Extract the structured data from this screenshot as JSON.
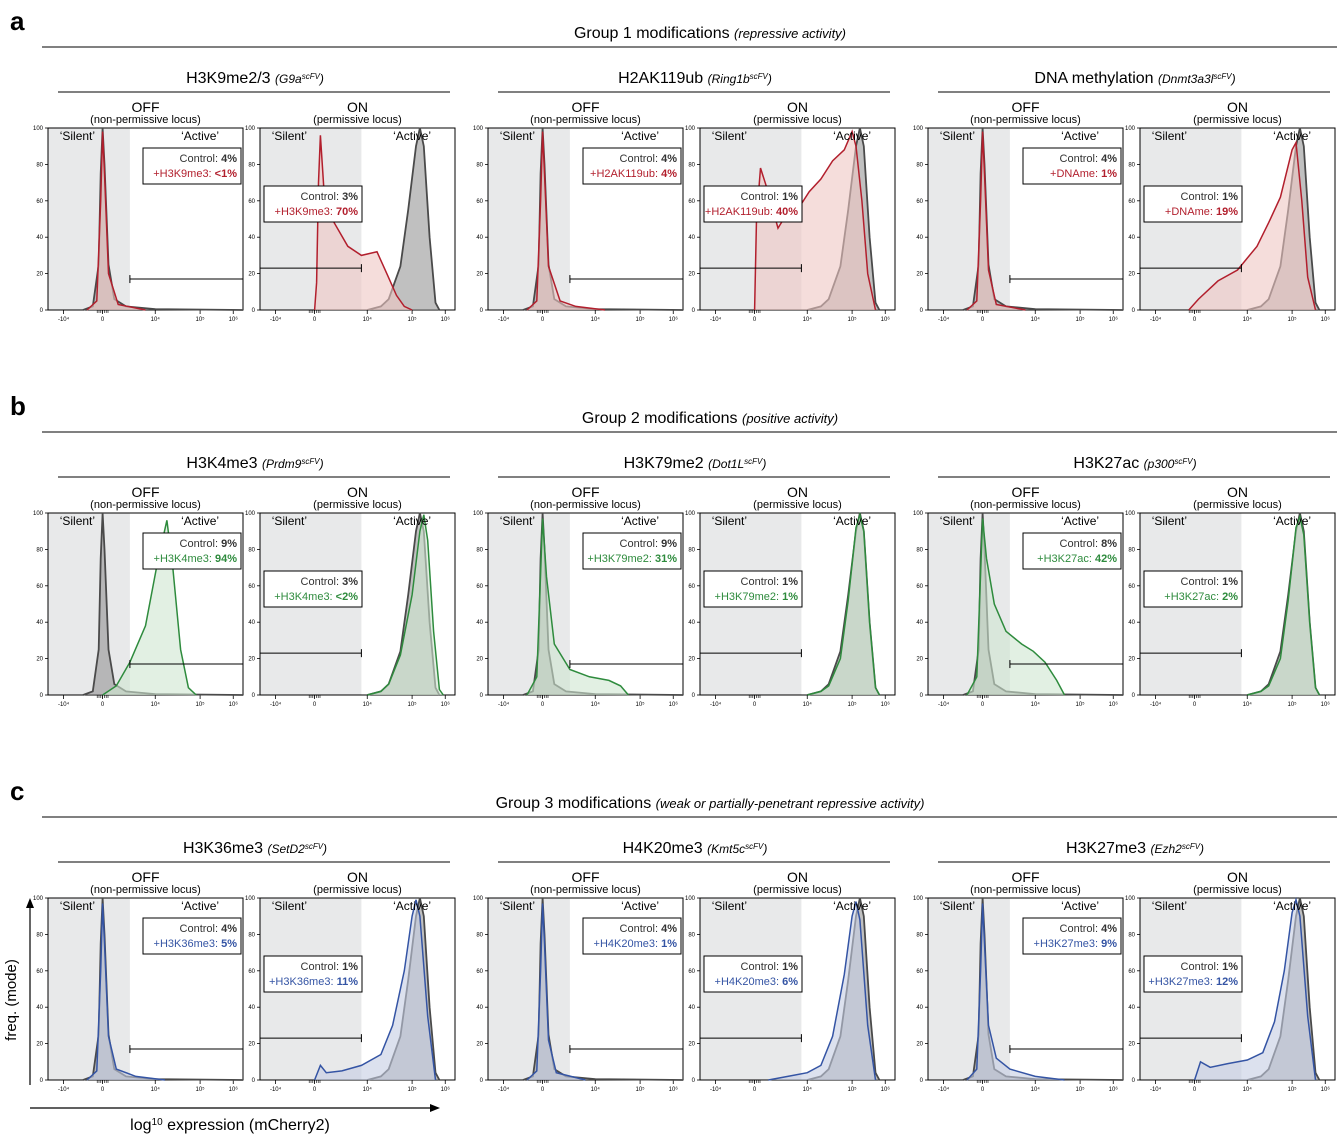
{
  "figure": {
    "y_axis_label": "freq. (mode)",
    "x_axis_label_prefix": "log",
    "x_axis_label_sub": "10",
    "x_axis_label_suffix": " expression (mCherry2)"
  },
  "common": {
    "off_title": "OFF",
    "off_subtitle": "(non-permissive locus)",
    "on_title": "ON",
    "on_subtitle": "(permissive locus)",
    "silent_label": "‘Silent’",
    "active_label": "‘Active’",
    "control_label": "Control:",
    "y_ticks": [
      "0",
      "20",
      "40",
      "60",
      "80",
      "100"
    ],
    "x_ticks": [
      "-10⁴",
      "0",
      "10⁴",
      "10⁵",
      "10⁶"
    ],
    "colors": {
      "control_line": "#4a4a4a",
      "control_fill": "#8c8c8c",
      "silent_shading": "#e8e9ea",
      "group1": "#b21f2d",
      "group1_fill": "#efc6c3",
      "group2": "#2e8b3d",
      "group2_fill": "#cfe6d0",
      "group3": "#3454a4",
      "group3_fill": "#c5cde3"
    }
  },
  "panels": [
    {
      "letter": "a",
      "title": "Group 1 modifications",
      "subtitle": "(repressive activity)",
      "color_key": "group1",
      "mods": [
        {
          "name": "H3K9me2/3",
          "enzyme": "G9a",
          "enzyme_sup": "scFV",
          "off": {
            "control": "4%",
            "mod_label": "+H3K9me3:",
            "mod": "<1%"
          },
          "on": {
            "control": "3%",
            "mod_label": "+H3K9me3:",
            "mod": "70%"
          }
        },
        {
          "name": "H2AK119ub",
          "enzyme": "Ring1b",
          "enzyme_sup": "scFV",
          "off": {
            "control": "4%",
            "mod_label": "+H2AK119ub:",
            "mod": "4%"
          },
          "on": {
            "control": "1%",
            "mod_label": "+H2AK119ub:",
            "mod": "40%"
          }
        },
        {
          "name": "DNA methylation",
          "enzyme": "Dnmt3a3l",
          "enzyme_sup": "scFV",
          "off": {
            "control": "4%",
            "mod_label": "+DNAme:",
            "mod": "1%"
          },
          "on": {
            "control": "1%",
            "mod_label": "+DNAme:",
            "mod": "19%"
          }
        }
      ]
    },
    {
      "letter": "b",
      "title": "Group 2 modifications",
      "subtitle": "(positive activity)",
      "color_key": "group2",
      "mods": [
        {
          "name": "H3K4me3",
          "enzyme": "Prdm9",
          "enzyme_sup": "scFV",
          "off": {
            "control": "9%",
            "mod_label": "+H3K4me3:",
            "mod": "94%"
          },
          "on": {
            "control": "3%",
            "mod_label": "+H3K4me3:",
            "mod": "<2%"
          }
        },
        {
          "name": "H3K79me2",
          "enzyme": "Dot1L",
          "enzyme_sup": "scFV",
          "off": {
            "control": "9%",
            "mod_label": "+H3K79me2:",
            "mod": "31%"
          },
          "on": {
            "control": "1%",
            "mod_label": "+H3K79me2:",
            "mod": "1%"
          }
        },
        {
          "name": "H3K27ac",
          "enzyme": "p300",
          "enzyme_sup": "scFV",
          "off": {
            "control": "8%",
            "mod_label": "+H3K27ac:",
            "mod": "42%"
          },
          "on": {
            "control": "1%",
            "mod_label": "+H3K27ac:",
            "mod": "2%"
          }
        }
      ]
    },
    {
      "letter": "c",
      "title": "Group 3 modifications",
      "subtitle": "(weak or partially-penetrant repressive activity)",
      "color_key": "group3",
      "mods": [
        {
          "name": "H3K36me3",
          "enzyme": "SetD2",
          "enzyme_sup": "scFV",
          "off": {
            "control": "4%",
            "mod_label": "+H3K36me3:",
            "mod": "5%"
          },
          "on": {
            "control": "1%",
            "mod_label": "+H3K36me3:",
            "mod": "11%"
          }
        },
        {
          "name": "H4K20me3",
          "enzyme": "Kmt5c",
          "enzyme_sup": "scFV",
          "off": {
            "control": "4%",
            "mod_label": "+H4K20me3:",
            "mod": "1%"
          },
          "on": {
            "control": "1%",
            "mod_label": "+H4K20me3:",
            "mod": "6%"
          }
        },
        {
          "name": "H3K27me3",
          "enzyme": "Ezh2",
          "enzyme_sup": "scFV",
          "off": {
            "control": "4%",
            "mod_label": "+H3K27me3:",
            "mod": "9%"
          },
          "on": {
            "control": "1%",
            "mod_label": "+H3K27me3:",
            "mod": "12%"
          }
        }
      ]
    }
  ],
  "chart_data": {
    "type": "area",
    "description_axes": {
      "x": "log10 expression (mCherry2)",
      "y": "freq. (mode)"
    },
    "ylim": [
      0,
      100
    ],
    "x_ticks": [
      "-10⁴",
      "0",
      "10⁴",
      "10⁵",
      "10⁶"
    ],
    "grid": false,
    "x_pos_units": "fraction of axis span between -10^4 and 10^6 ticks (0 = left tick, 1 = right tick)",
    "histograms": {
      "ctrl_off": [
        [
          0.18,
          0
        ],
        [
          0.23,
          2
        ],
        [
          0.26,
          25
        ],
        [
          0.27,
          75
        ],
        [
          0.28,
          100
        ],
        [
          0.29,
          80
        ],
        [
          0.31,
          25
        ],
        [
          0.34,
          6
        ],
        [
          0.4,
          2
        ],
        [
          0.55,
          0.5
        ],
        [
          1.0,
          0
        ]
      ],
      "ctrl_on": [
        [
          0.55,
          0
        ],
        [
          0.62,
          2
        ],
        [
          0.66,
          6
        ],
        [
          0.72,
          24
        ],
        [
          0.76,
          55
        ],
        [
          0.8,
          90
        ],
        [
          0.82,
          100
        ],
        [
          0.84,
          90
        ],
        [
          0.87,
          40
        ],
        [
          0.9,
          4
        ],
        [
          0.92,
          0
        ]
      ],
      "a_H3K9_off": [
        [
          0.2,
          0
        ],
        [
          0.25,
          5
        ],
        [
          0.27,
          60
        ],
        [
          0.28,
          98
        ],
        [
          0.29,
          75
        ],
        [
          0.31,
          20
        ],
        [
          0.36,
          3
        ],
        [
          0.5,
          0
        ]
      ],
      "a_H3K9_on": [
        [
          0.28,
          0
        ],
        [
          0.29,
          15
        ],
        [
          0.3,
          70
        ],
        [
          0.31,
          96
        ],
        [
          0.33,
          62
        ],
        [
          0.38,
          48
        ],
        [
          0.45,
          35
        ],
        [
          0.52,
          30
        ],
        [
          0.6,
          32
        ],
        [
          0.65,
          20
        ],
        [
          0.7,
          8
        ],
        [
          0.74,
          2
        ],
        [
          0.78,
          0
        ]
      ],
      "a_H2AK_off": [
        [
          0.2,
          0
        ],
        [
          0.25,
          5
        ],
        [
          0.27,
          60
        ],
        [
          0.28,
          98
        ],
        [
          0.29,
          75
        ],
        [
          0.31,
          24
        ],
        [
          0.37,
          5
        ],
        [
          0.45,
          2
        ],
        [
          0.6,
          0
        ]
      ],
      "a_H2AK_on": [
        [
          0.28,
          0
        ],
        [
          0.29,
          50
        ],
        [
          0.31,
          78
        ],
        [
          0.34,
          68
        ],
        [
          0.4,
          45
        ],
        [
          0.44,
          52
        ],
        [
          0.5,
          55
        ],
        [
          0.56,
          65
        ],
        [
          0.62,
          72
        ],
        [
          0.68,
          82
        ],
        [
          0.74,
          88
        ],
        [
          0.78,
          98
        ],
        [
          0.8,
          90
        ],
        [
          0.83,
          60
        ],
        [
          0.86,
          20
        ],
        [
          0.9,
          0
        ]
      ],
      "a_DNA_off": [
        [
          0.2,
          0
        ],
        [
          0.25,
          5
        ],
        [
          0.27,
          60
        ],
        [
          0.28,
          98
        ],
        [
          0.29,
          75
        ],
        [
          0.31,
          22
        ],
        [
          0.35,
          3
        ],
        [
          0.5,
          0
        ]
      ],
      "a_DNA_on": [
        [
          0.25,
          0
        ],
        [
          0.3,
          6
        ],
        [
          0.4,
          16
        ],
        [
          0.5,
          22
        ],
        [
          0.6,
          35
        ],
        [
          0.66,
          48
        ],
        [
          0.72,
          62
        ],
        [
          0.78,
          88
        ],
        [
          0.8,
          92
        ],
        [
          0.83,
          60
        ],
        [
          0.86,
          18
        ],
        [
          0.9,
          0
        ]
      ],
      "b_H3K4_off": [
        [
          0.28,
          0
        ],
        [
          0.35,
          5
        ],
        [
          0.42,
          18
        ],
        [
          0.5,
          38
        ],
        [
          0.56,
          72
        ],
        [
          0.61,
          96
        ],
        [
          0.64,
          70
        ],
        [
          0.68,
          25
        ],
        [
          0.72,
          4
        ],
        [
          0.76,
          0
        ]
      ],
      "b_H3K4_on": [
        [
          0.55,
          0
        ],
        [
          0.62,
          2
        ],
        [
          0.66,
          6
        ],
        [
          0.72,
          22
        ],
        [
          0.78,
          55
        ],
        [
          0.82,
          90
        ],
        [
          0.84,
          99
        ],
        [
          0.86,
          85
        ],
        [
          0.89,
          35
        ],
        [
          0.92,
          3
        ],
        [
          0.94,
          0
        ]
      ],
      "b_H3K79_off": [
        [
          0.2,
          0
        ],
        [
          0.25,
          10
        ],
        [
          0.28,
          97
        ],
        [
          0.3,
          65
        ],
        [
          0.34,
          28
        ],
        [
          0.42,
          14
        ],
        [
          0.52,
          10
        ],
        [
          0.62,
          8
        ],
        [
          0.68,
          5
        ],
        [
          0.72,
          0
        ]
      ],
      "b_H3K79_on": [
        [
          0.55,
          0
        ],
        [
          0.62,
          2
        ],
        [
          0.66,
          5
        ],
        [
          0.72,
          20
        ],
        [
          0.76,
          52
        ],
        [
          0.8,
          92
        ],
        [
          0.82,
          99
        ],
        [
          0.84,
          90
        ],
        [
          0.87,
          40
        ],
        [
          0.9,
          4
        ],
        [
          0.92,
          0
        ]
      ],
      "b_H3K27ac_off": [
        [
          0.2,
          0
        ],
        [
          0.25,
          10
        ],
        [
          0.28,
          97
        ],
        [
          0.3,
          75
        ],
        [
          0.34,
          50
        ],
        [
          0.4,
          35
        ],
        [
          0.48,
          28
        ],
        [
          0.54,
          24
        ],
        [
          0.6,
          18
        ],
        [
          0.66,
          8
        ],
        [
          0.7,
          0
        ]
      ],
      "b_H3K27ac_on": [
        [
          0.55,
          0
        ],
        [
          0.62,
          2
        ],
        [
          0.66,
          5
        ],
        [
          0.72,
          20
        ],
        [
          0.76,
          52
        ],
        [
          0.8,
          92
        ],
        [
          0.82,
          98
        ],
        [
          0.84,
          88
        ],
        [
          0.87,
          40
        ],
        [
          0.9,
          4
        ],
        [
          0.92,
          0
        ]
      ],
      "c_H3K36_off": [
        [
          0.2,
          0
        ],
        [
          0.25,
          5
        ],
        [
          0.27,
          60
        ],
        [
          0.28,
          97
        ],
        [
          0.29,
          75
        ],
        [
          0.31,
          24
        ],
        [
          0.35,
          6
        ],
        [
          0.45,
          2
        ],
        [
          0.6,
          0
        ]
      ],
      "c_H3K36_on": [
        [
          0.28,
          0
        ],
        [
          0.31,
          8
        ],
        [
          0.34,
          4
        ],
        [
          0.42,
          5
        ],
        [
          0.52,
          8
        ],
        [
          0.62,
          14
        ],
        [
          0.68,
          30
        ],
        [
          0.74,
          60
        ],
        [
          0.78,
          90
        ],
        [
          0.8,
          99
        ],
        [
          0.82,
          90
        ],
        [
          0.86,
          35
        ],
        [
          0.9,
          0
        ]
      ],
      "c_H4K20_off": [
        [
          0.2,
          0
        ],
        [
          0.25,
          5
        ],
        [
          0.27,
          60
        ],
        [
          0.28,
          97
        ],
        [
          0.29,
          75
        ],
        [
          0.31,
          22
        ],
        [
          0.35,
          4
        ],
        [
          0.5,
          0
        ]
      ],
      "c_H4K20_on": [
        [
          0.35,
          0
        ],
        [
          0.45,
          2
        ],
        [
          0.55,
          4
        ],
        [
          0.62,
          8
        ],
        [
          0.68,
          24
        ],
        [
          0.74,
          58
        ],
        [
          0.78,
          90
        ],
        [
          0.8,
          98
        ],
        [
          0.82,
          88
        ],
        [
          0.86,
          30
        ],
        [
          0.9,
          0
        ]
      ],
      "c_H3K27me3_off": [
        [
          0.2,
          0
        ],
        [
          0.25,
          6
        ],
        [
          0.27,
          60
        ],
        [
          0.28,
          97
        ],
        [
          0.29,
          75
        ],
        [
          0.31,
          30
        ],
        [
          0.35,
          12
        ],
        [
          0.42,
          6
        ],
        [
          0.55,
          2
        ],
        [
          0.7,
          0
        ]
      ],
      "c_H3K27me3_on": [
        [
          0.28,
          0
        ],
        [
          0.31,
          10
        ],
        [
          0.36,
          7
        ],
        [
          0.45,
          9
        ],
        [
          0.55,
          11
        ],
        [
          0.63,
          15
        ],
        [
          0.69,
          32
        ],
        [
          0.74,
          60
        ],
        [
          0.78,
          92
        ],
        [
          0.8,
          99
        ],
        [
          0.82,
          90
        ],
        [
          0.86,
          35
        ],
        [
          0.9,
          0
        ]
      ]
    },
    "gates": {
      "off_gate_y": 17,
      "on_gate_y": 23
    }
  }
}
